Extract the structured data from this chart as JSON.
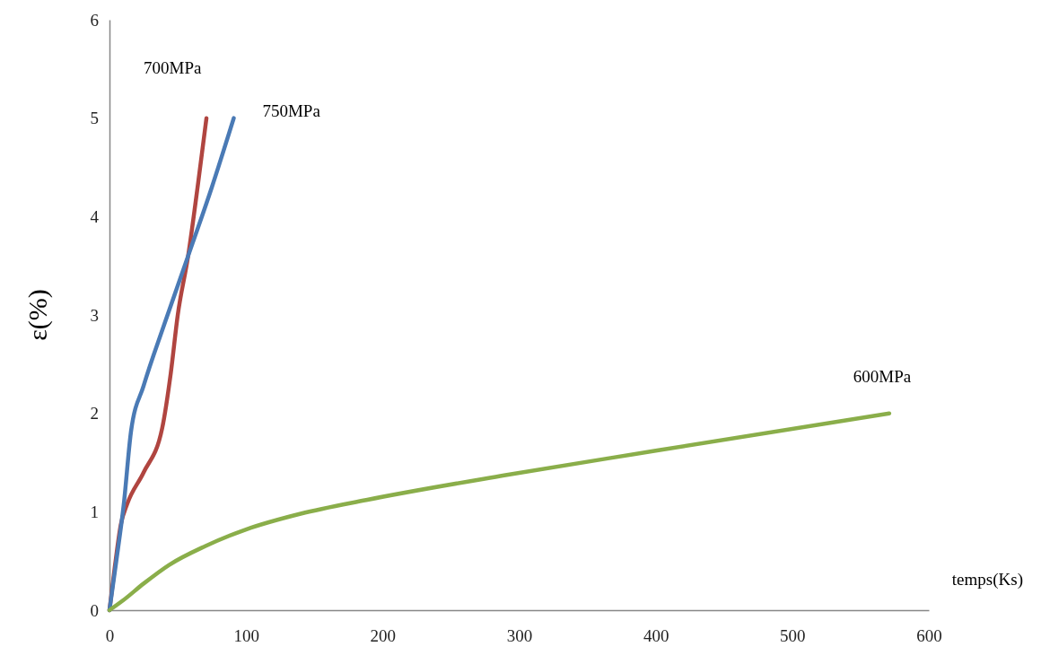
{
  "chart_data": {
    "type": "line",
    "xlabel": "temps(Ks)",
    "ylabel": "ε(%)",
    "xlim": [
      0,
      600
    ],
    "ylim": [
      0,
      6
    ],
    "xticks": [
      0,
      100,
      200,
      300,
      400,
      500,
      600
    ],
    "yticks": [
      0,
      1,
      2,
      3,
      4,
      5,
      6
    ],
    "grid": false,
    "marker": "none",
    "line_style": "solid",
    "series": [
      {
        "name": "700MPa",
        "color": "#b04540",
        "x": [
          0,
          4,
          8.3,
          13,
          25,
          38.6,
          44.9,
          50,
          57.6,
          65,
          71
        ],
        "values": [
          0,
          0.45,
          0.87,
          1.08,
          1.4,
          1.85,
          2.41,
          3.0,
          3.6,
          4.35,
          5.0
        ]
      },
      {
        "name": "750MPa",
        "color": "#4a7ab5",
        "x": [
          0,
          5,
          10.5,
          15.8,
          25,
          40,
          57.6,
          75,
          91
        ],
        "values": [
          0,
          0.5,
          1.08,
          1.82,
          2.28,
          2.9,
          3.6,
          4.3,
          5.0
        ]
      },
      {
        "name": "600MPa",
        "color": "#8aae4a",
        "x": [
          0,
          10,
          25,
          43.7,
          70,
          100,
          140,
          188,
          289,
          400,
          571
        ],
        "values": [
          0,
          0.1,
          0.27,
          0.46,
          0.65,
          0.82,
          0.98,
          1.12,
          1.37,
          1.62,
          2.0
        ]
      }
    ]
  }
}
